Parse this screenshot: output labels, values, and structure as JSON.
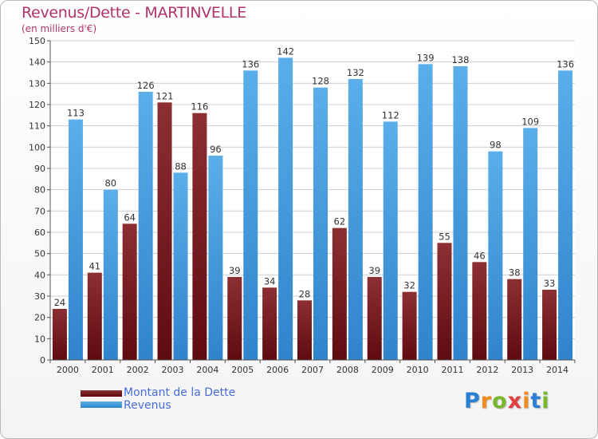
{
  "title": "Revenus/Dette - MARTINVELLE",
  "subtitle": "(en milliers d'€)",
  "logo": {
    "text": "Proxiti",
    "colors": [
      "#2a7fd4",
      "#f28a1d",
      "#79b82d",
      "#e23f3f",
      "#f28a1d",
      "#2a7fd4",
      "#79b82d"
    ]
  },
  "chart_data": {
    "type": "bar",
    "categories": [
      "2000",
      "2001",
      "2002",
      "2003",
      "2004",
      "2005",
      "2006",
      "2007",
      "2008",
      "2009",
      "2010",
      "2011",
      "2012",
      "2013",
      "2014"
    ],
    "series": [
      {
        "name": "Montant de la Dette",
        "color": "#7a2024",
        "values": [
          24,
          41,
          64,
          121,
          116,
          39,
          34,
          28,
          62,
          39,
          32,
          55,
          46,
          38,
          33
        ]
      },
      {
        "name": "Revenus",
        "color": "#4a9fe0",
        "values": [
          113,
          80,
          126,
          88,
          96,
          136,
          142,
          128,
          132,
          112,
          139,
          138,
          98,
          109,
          136
        ]
      }
    ],
    "yticks": [
      0,
      10,
      20,
      30,
      40,
      50,
      60,
      70,
      80,
      90,
      100,
      110,
      120,
      130,
      140,
      150
    ],
    "ylim": [
      0,
      150
    ],
    "grid": true,
    "legend_position": "bottom-left"
  }
}
